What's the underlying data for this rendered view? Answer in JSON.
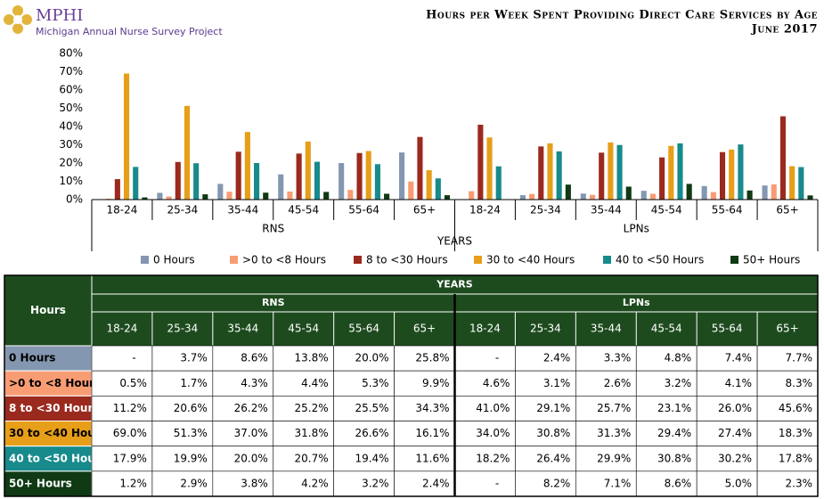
{
  "header": {
    "logo": "MPHI",
    "organization": "Michigan Annual Nurse Survey Project"
  },
  "chart_data": {
    "type": "bar",
    "title": "Hours per Week Spent Providing Direct Care Services by Age",
    "subtitle": "June 2017",
    "xlabel": "YEARS",
    "groups": [
      {
        "name": "RNS",
        "categories": [
          "18-24",
          "25-34",
          "35-44",
          "45-54",
          "55-64",
          "65+"
        ]
      },
      {
        "name": "LPNs",
        "categories": [
          "18-24",
          "25-34",
          "35-44",
          "45-54",
          "55-64",
          "65+"
        ]
      }
    ],
    "ylim": [
      0,
      80
    ],
    "yticks": [
      {
        "value": 0,
        "label": "0%"
      },
      {
        "value": 10,
        "label": "10%"
      },
      {
        "value": 20,
        "label": "20%"
      },
      {
        "value": 30,
        "label": "30%"
      },
      {
        "value": 40,
        "label": "40%"
      },
      {
        "value": 50,
        "label": "50%"
      },
      {
        "value": 60,
        "label": "60%"
      },
      {
        "value": 70,
        "label": "70%"
      },
      {
        "value": 80,
        "label": "80%"
      }
    ],
    "grid": false,
    "legend": "bottom",
    "series": [
      {
        "name": "0 Hours",
        "color": "#8497b0",
        "values": [
          null,
          3.7,
          8.6,
          13.8,
          20.0,
          25.8,
          null,
          2.4,
          3.3,
          4.8,
          7.4,
          7.7
        ]
      },
      {
        "name": ">0 to <8 Hours",
        "color": "#f89c74",
        "values": [
          0.5,
          1.7,
          4.3,
          4.4,
          5.3,
          9.9,
          4.6,
          3.1,
          2.6,
          3.2,
          4.1,
          8.3
        ]
      },
      {
        "name": "8 to <30 Hours",
        "color": "#9b2a1e",
        "values": [
          11.2,
          20.6,
          26.2,
          25.2,
          25.5,
          34.3,
          41.0,
          29.1,
          25.7,
          23.1,
          26.0,
          45.6
        ]
      },
      {
        "name": "30 to <40 Hours",
        "color": "#e79e19",
        "values": [
          69.0,
          51.3,
          37.0,
          31.8,
          26.6,
          16.1,
          34.0,
          30.8,
          31.3,
          29.4,
          27.4,
          18.3
        ]
      },
      {
        "name": "40 to <50 Hours",
        "color": "#178a8c",
        "values": [
          17.9,
          19.9,
          20.0,
          20.7,
          19.4,
          11.6,
          18.2,
          26.4,
          29.9,
          30.8,
          30.2,
          17.8
        ]
      },
      {
        "name": "50+ Hours",
        "color": "#0f3a14",
        "values": [
          1.2,
          2.9,
          3.8,
          4.2,
          3.2,
          2.4,
          null,
          8.2,
          7.1,
          8.6,
          5.0,
          2.3
        ]
      }
    ]
  },
  "table": {
    "corner": "Hours",
    "rows": [
      [
        "-",
        "3.7%",
        "8.6%",
        "13.8%",
        "20.0%",
        "25.8%",
        "-",
        "2.4%",
        "3.3%",
        "4.8%",
        "7.4%",
        "7.7%"
      ],
      [
        "0.5%",
        "1.7%",
        "4.3%",
        "4.4%",
        "5.3%",
        "9.9%",
        "4.6%",
        "3.1%",
        "2.6%",
        "3.2%",
        "4.1%",
        "8.3%"
      ],
      [
        "11.2%",
        "20.6%",
        "26.2%",
        "25.2%",
        "25.5%",
        "34.3%",
        "41.0%",
        "29.1%",
        "25.7%",
        "23.1%",
        "26.0%",
        "45.6%"
      ],
      [
        "69.0%",
        "51.3%",
        "37.0%",
        "31.8%",
        "26.6%",
        "16.1%",
        "34.0%",
        "30.8%",
        "31.3%",
        "29.4%",
        "27.4%",
        "18.3%"
      ],
      [
        "17.9%",
        "19.9%",
        "20.0%",
        "20.7%",
        "19.4%",
        "11.6%",
        "18.2%",
        "26.4%",
        "29.9%",
        "30.8%",
        "30.2%",
        "17.8%"
      ],
      [
        "1.2%",
        "2.9%",
        "3.8%",
        "4.2%",
        "3.2%",
        "2.4%",
        "-",
        "8.2%",
        "7.1%",
        "8.6%",
        "5.0%",
        "2.3%"
      ]
    ]
  }
}
